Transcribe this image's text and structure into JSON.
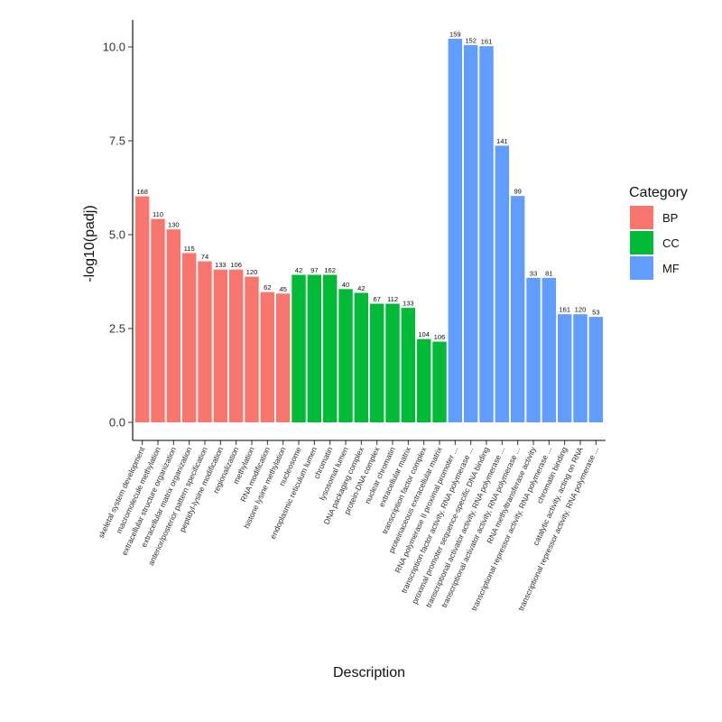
{
  "chart_data": {
    "type": "bar",
    "title": "",
    "xlabel": "Description",
    "ylabel": "-log10(padj)",
    "ylim": [
      0,
      11.0
    ],
    "yticks": [
      0,
      2.5,
      5,
      7.5,
      10
    ],
    "ytick_labels": [
      "0.0",
      "2.5",
      "5.0",
      "7.5",
      "10.0"
    ],
    "grid": false,
    "legend": {
      "title": "Category",
      "placement": "right",
      "entries": [
        {
          "name": "BP",
          "color": "#F8766D"
        },
        {
          "name": "CC",
          "color": "#00BA38"
        },
        {
          "name": "MF",
          "color": "#619CFF"
        }
      ]
    },
    "categories": [
      "skeletal system development",
      "macromolecule methylation",
      "extracellular structure organization",
      "extracellular matrix organization",
      "anterior/posterior pattern specification",
      "peptidyl-lysine modification",
      "regionalization",
      "methylation",
      "RNA modification",
      "histone lysine methylation",
      "nucleosome",
      "endoplasmic reticulum lumen",
      "chromatin",
      "lysosomal lumen",
      "DNA packaging complex",
      "protein-DNA complex",
      "nuclear chromatin",
      "extracellular matrix",
      "transcription factor complex",
      "proteinaceous extracellular matrix",
      "RNA polymerase II proximal promoter ...",
      "transcription factor activity, RNA polymerase ...",
      "proximal promoter sequence-specific DNA binding",
      "transcriptional activator activity, RNA polymerase ...",
      "transcriptional activator activity, RNA polymerase ...",
      "RNA methyltransferase activity",
      "transcriptional repressor activity, RNA polymerase ...",
      "chromatin binding",
      "catalytic activity, acting on RNA",
      "transcriptional repressor activity, RNA polymerase ..."
    ],
    "groups": [
      "BP",
      "BP",
      "BP",
      "BP",
      "BP",
      "BP",
      "BP",
      "BP",
      "BP",
      "BP",
      "CC",
      "CC",
      "CC",
      "CC",
      "CC",
      "CC",
      "CC",
      "CC",
      "CC",
      "CC",
      "MF",
      "MF",
      "MF",
      "MF",
      "MF",
      "MF",
      "MF",
      "MF",
      "MF",
      "MF"
    ],
    "values": [
      6.02,
      5.42,
      5.14,
      4.51,
      4.29,
      4.07,
      4.07,
      3.88,
      3.47,
      3.43,
      3.93,
      3.93,
      3.93,
      3.55,
      3.45,
      3.16,
      3.16,
      3.05,
      2.22,
      2.15,
      10.22,
      10.05,
      10.02,
      7.37,
      6.03,
      3.85,
      3.85,
      2.88,
      2.88,
      2.81
    ],
    "counts": [
      "168",
      "110",
      "130",
      "115",
      "74",
      "133",
      "106",
      "120",
      "62",
      "45",
      "42",
      "97",
      "162",
      "40",
      "42",
      "67",
      "112",
      "133",
      "104",
      "106",
      "159",
      "152",
      "161",
      "141",
      "99",
      "33",
      "81",
      "161",
      "120",
      "53"
    ]
  }
}
